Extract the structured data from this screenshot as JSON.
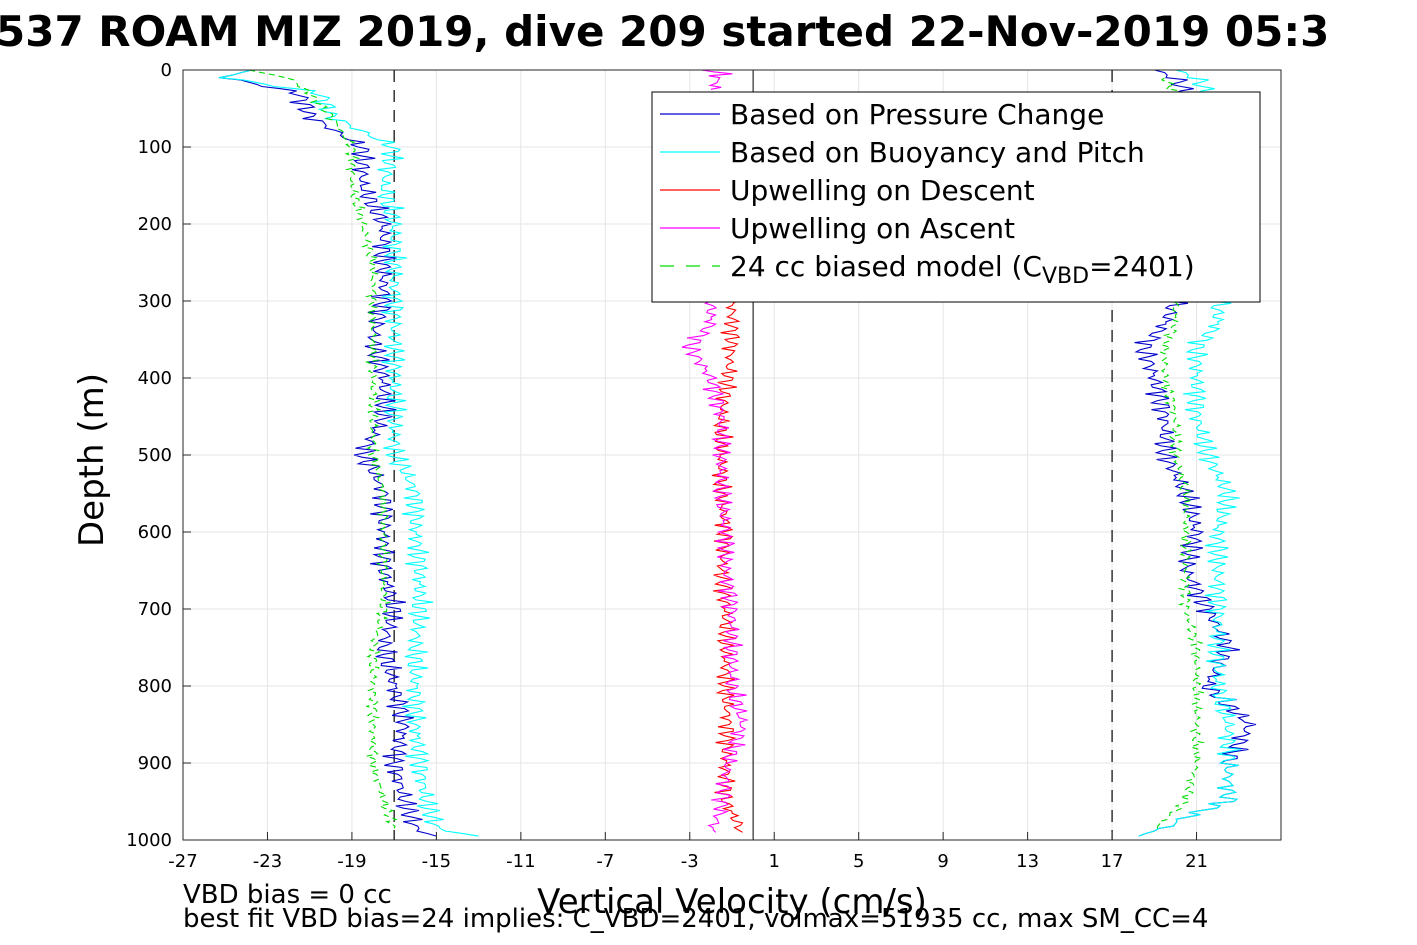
{
  "chart_data": {
    "type": "line",
    "title": "537 ROAM MIZ 2019, dive 209 started 22-Nov-2019 05:3",
    "xlabel": "Vertical Velocity (cm/s)",
    "ylabel": "Depth (m)",
    "xlim": [
      -27,
      25
    ],
    "ylim": [
      0,
      1000
    ],
    "y_reversed": true,
    "x_ticks": [
      -27,
      -23,
      -19,
      -15,
      -11,
      -7,
      -3,
      1,
      5,
      9,
      13,
      17,
      21
    ],
    "y_ticks": [
      0,
      100,
      200,
      300,
      400,
      500,
      600,
      700,
      800,
      900,
      1000
    ],
    "grid": true,
    "legend_position": "top-right",
    "legend": [
      {
        "label": "Based on Pressure Change",
        "color": "#0000cc",
        "style": "solid"
      },
      {
        "label": "Based on Buoyancy and Pitch",
        "color": "#00ffff",
        "style": "solid"
      },
      {
        "label": "Upwelling on Descent",
        "color": "#ff0000",
        "style": "solid"
      },
      {
        "label": "Upwelling on Ascent",
        "color": "#ff00ff",
        "style": "solid"
      },
      {
        "label_main": "24 cc biased model (C",
        "label_sub": "VBD",
        "label_end": "=2401)",
        "color": "#00dd00",
        "style": "dashed"
      }
    ],
    "reference_lines": {
      "vertical_dashed": [
        -17,
        17
      ],
      "vertical_solid": [
        0
      ]
    },
    "series": [
      {
        "name": "Based on Pressure Change",
        "color": "#0000cc",
        "descent": {
          "depth": [
            0,
            10,
            30,
            60,
            100,
            150,
            200,
            250,
            300,
            350,
            400,
            450,
            500,
            520,
            550,
            600,
            650,
            700,
            750,
            800,
            850,
            900,
            950,
            985,
            995
          ],
          "vel": [
            -24,
            -25,
            -21.5,
            -21,
            -18.5,
            -18.5,
            -17.5,
            -17.5,
            -17.5,
            -18,
            -17.5,
            -17.5,
            -18.5,
            -18,
            -17.5,
            -17.5,
            -17.5,
            -17,
            -17.5,
            -17,
            -16.5,
            -17,
            -16.5,
            -16,
            -15
          ]
        },
        "ascent": {
          "depth": [
            995,
            985,
            970,
            950,
            900,
            850,
            800,
            750,
            700,
            650,
            600,
            550,
            500,
            450,
            400,
            360,
            330,
            300,
            200,
            100,
            30,
            10,
            0
          ],
          "vel": [
            18,
            19.5,
            20.5,
            22.5,
            22.5,
            23.5,
            21.5,
            22.5,
            21.5,
            20.5,
            21,
            20.5,
            19.5,
            19.5,
            19,
            18.5,
            19.5,
            20,
            21,
            21,
            20.5,
            20,
            19
          ]
        }
      },
      {
        "name": "Based on Buoyancy and Pitch",
        "color": "#00ffff",
        "descent": {
          "depth": [
            0,
            10,
            30,
            60,
            100,
            150,
            200,
            250,
            300,
            350,
            400,
            450,
            500,
            520,
            550,
            600,
            650,
            700,
            750,
            800,
            850,
            900,
            950,
            985,
            995
          ],
          "vel": [
            -24,
            -25,
            -20.5,
            -20,
            -17,
            -17.5,
            -17,
            -17,
            -17,
            -17,
            -17,
            -17,
            -17,
            -16.5,
            -16,
            -16,
            -15.8,
            -15.8,
            -16,
            -16,
            -16,
            -15.8,
            -15.5,
            -15,
            -13
          ]
        },
        "ascent": {
          "depth": [
            995,
            985,
            970,
            950,
            900,
            850,
            800,
            750,
            700,
            650,
            600,
            550,
            500,
            450,
            400,
            360,
            330,
            300,
            200,
            100,
            30,
            10,
            0
          ],
          "vel": [
            18,
            19.5,
            20.5,
            22.5,
            22.5,
            22.5,
            22,
            22,
            22,
            22,
            22,
            22.5,
            21.5,
            21,
            21,
            21,
            22,
            22,
            22,
            22,
            21.5,
            21,
            20
          ]
        }
      },
      {
        "name": "Upwelling on Descent",
        "color": "#ff0000",
        "descent": {
          "depth": [
            300,
            350,
            400,
            450,
            500,
            550,
            600,
            650,
            700,
            750,
            800,
            850,
            900,
            950,
            990
          ],
          "vel": [
            -1,
            -1,
            -1.2,
            -1.5,
            -1.5,
            -1.5,
            -1.3,
            -1.5,
            -1.3,
            -1.3,
            -1.3,
            -1.2,
            -1.3,
            -1.3,
            -0.5
          ]
        }
      },
      {
        "name": "Upwelling on Ascent",
        "color": "#ff00ff",
        "ascent": {
          "depth": [
            990,
            960,
            900,
            850,
            800,
            750,
            700,
            650,
            600,
            550,
            500,
            450,
            400,
            360,
            330,
            300
          ],
          "vel": [
            -2,
            -1.5,
            -1.2,
            -0.5,
            -1,
            -1,
            -1,
            -1.3,
            -1.3,
            -1.5,
            -1.5,
            -1.5,
            -2,
            -3,
            -2,
            -2
          ]
        },
        "surface": {
          "depth": [
            0,
            5,
            10,
            20,
            25
          ],
          "vel": [
            -3,
            -1,
            -2,
            -1.5,
            -2
          ]
        }
      },
      {
        "name": "24 cc biased model",
        "color": "#00dd00",
        "dashed": true,
        "descent": {
          "depth": [
            0,
            10,
            30,
            60,
            100,
            150,
            200,
            250,
            300,
            350,
            400,
            450,
            500,
            550,
            600,
            650,
            700,
            750,
            800,
            850,
            900,
            950,
            985
          ],
          "vel": [
            -24,
            -22,
            -21,
            -20,
            -19,
            -19,
            -18.5,
            -18,
            -18,
            -18,
            -18,
            -18,
            -18,
            -17.5,
            -17.5,
            -17.5,
            -17.5,
            -18,
            -18,
            -18,
            -18,
            -17.5,
            -17
          ]
        },
        "ascent": {
          "depth": [
            985,
            950,
            900,
            850,
            800,
            750,
            700,
            650,
            600,
            550,
            500,
            450,
            400,
            360,
            330,
            300,
            100,
            30,
            10
          ],
          "vel": [
            19,
            20.5,
            21,
            21,
            21,
            21,
            20.5,
            20.5,
            20.5,
            20.5,
            20,
            20,
            19.5,
            19.5,
            20,
            20,
            20,
            20,
            19.5
          ]
        }
      }
    ],
    "annotations": [
      "VBD bias = 0 cc",
      "best fit VBD bias=24 implies: C_VBD=2401, volmax=51935 cc, max SM_CC=4"
    ]
  }
}
